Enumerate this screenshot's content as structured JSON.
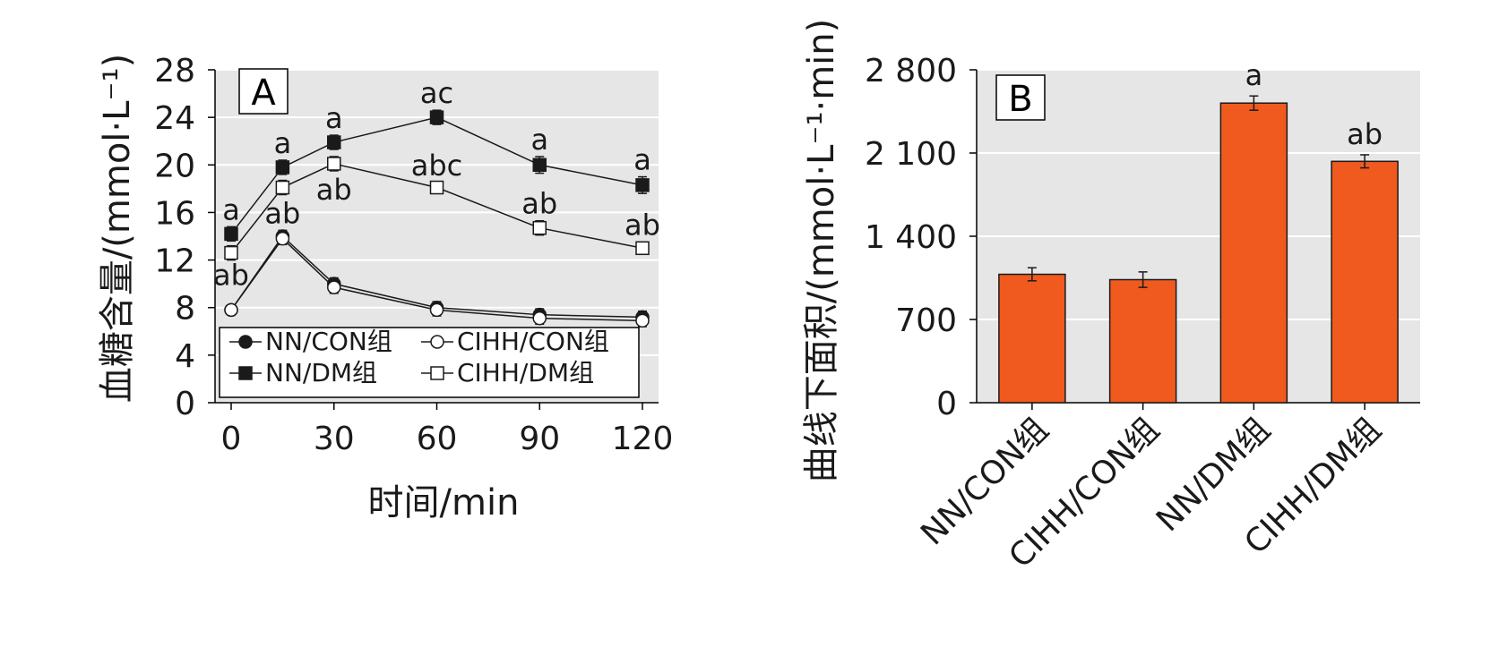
{
  "chart_data": [
    {
      "type": "line",
      "panel_label": "A",
      "xlabel": "时间/min",
      "ylabel": "血糖含量/(mmol·L⁻¹)",
      "xlim": [
        0,
        120
      ],
      "ylim": [
        0,
        28
      ],
      "xticks": [
        "0",
        "30",
        "60",
        "90",
        "120"
      ],
      "yticks": [
        "0",
        "4",
        "8",
        "12",
        "16",
        "20",
        "24",
        "28"
      ],
      "x": [
        0,
        15,
        30,
        60,
        90,
        120
      ],
      "grid": true,
      "legend_position": "bottom-left",
      "series": [
        {
          "name": "NN/CON组",
          "marker": "filled-circle",
          "values": [
            7.8,
            14.0,
            10.0,
            8.0,
            7.4,
            7.2
          ],
          "errors": [
            0.3,
            0.5,
            0.5,
            0.5,
            0.5,
            0.5
          ],
          "labels": [
            "",
            "",
            "",
            "",
            "",
            ""
          ]
        },
        {
          "name": "CIHH/CON组",
          "marker": "open-circle",
          "values": [
            7.8,
            13.8,
            9.7,
            7.8,
            7.1,
            6.9
          ],
          "errors": [
            0.3,
            0.5,
            0.5,
            0.5,
            0.5,
            0.5
          ],
          "labels": [
            "",
            "",
            "",
            "",
            "",
            ""
          ]
        },
        {
          "name": "NN/DM组",
          "marker": "filled-square",
          "values": [
            14.2,
            19.8,
            21.9,
            24.0,
            20.0,
            18.3
          ],
          "errors": [
            0.6,
            0.6,
            0.6,
            0.6,
            0.7,
            0.7
          ],
          "labels": [
            "a",
            "a",
            "a",
            "ac",
            "a",
            "a"
          ]
        },
        {
          "name": "CIHH/DM组",
          "marker": "open-square",
          "values": [
            12.6,
            18.1,
            20.1,
            18.1,
            14.7,
            13.0
          ],
          "errors": [
            0.6,
            0.6,
            0.6,
            0.4,
            0.6,
            0.5
          ],
          "labels": [
            "ab",
            "ab",
            "ab",
            "abc",
            "ab",
            "ab"
          ]
        }
      ]
    },
    {
      "type": "bar",
      "panel_label": "B",
      "ylabel": "曲线下面积/(mmol·L⁻¹·min)",
      "ylim": [
        0,
        2800
      ],
      "yticks": [
        "0",
        "700",
        "1 400",
        "2 100",
        "2 800"
      ],
      "categories": [
        "NN/CON组",
        "CIHH/CON组",
        "NN/DM组",
        "CIHH/DM组"
      ],
      "values": [
        1080,
        1035,
        2520,
        2030
      ],
      "errors": [
        55,
        65,
        60,
        55
      ],
      "labels": [
        "",
        "",
        "a",
        "ab"
      ],
      "bar_color": "#f05a1f",
      "grid": true
    }
  ]
}
